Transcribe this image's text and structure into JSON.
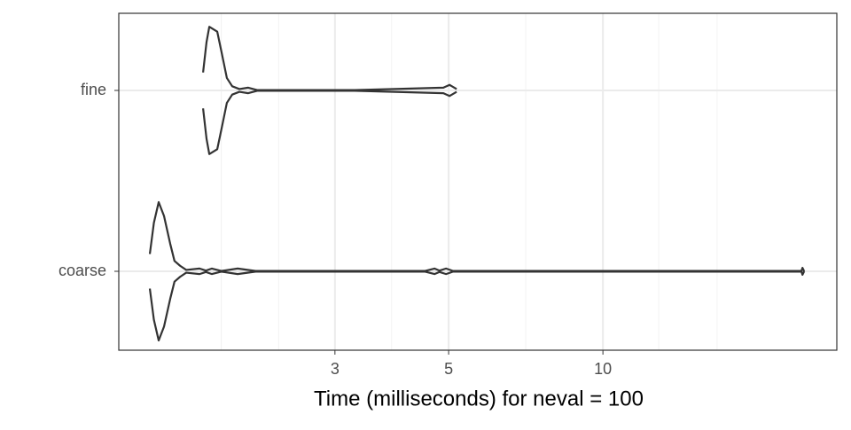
{
  "chart_data": {
    "type": "violin",
    "x_label": "Time (milliseconds) for neval = 100",
    "log_x": true,
    "grid": true,
    "color": "#333333",
    "xlim": [
      1.136,
      28.6
    ],
    "xticks": [
      3,
      5,
      10
    ],
    "minor_xticks": [
      1.8,
      2.33,
      3.87,
      7.07,
      12.85,
      16.7
    ],
    "categories": [
      "fine",
      "coarse"
    ],
    "series": [
      {
        "name": "fine",
        "x": [
          1.659,
          1.685,
          1.706,
          1.768,
          1.803,
          1.846,
          1.891,
          1.953,
          2.032,
          2.115,
          3.279,
          4.883,
          5.021,
          5.183
        ],
        "density": [
          0.26,
          0.7,
          0.92,
          0.85,
          0.55,
          0.18,
          0.06,
          0.02,
          0.04,
          0.005,
          0.005,
          0.04,
          0.08,
          0.02
        ]
      },
      {
        "name": "coarse",
        "x": [
          1.306,
          1.33,
          1.359,
          1.392,
          1.431,
          1.459,
          1.496,
          1.538,
          1.633,
          1.68,
          1.726,
          1.8,
          1.938,
          2.1,
          4.5,
          4.692,
          4.8,
          4.942,
          5.1,
          24.4,
          24.51,
          24.7
        ],
        "density": [
          0.25,
          0.7,
          1.0,
          0.8,
          0.4,
          0.15,
          0.08,
          0.02,
          0.04,
          0.01,
          0.04,
          0.005,
          0.04,
          0.005,
          0.005,
          0.04,
          0.01,
          0.04,
          0.005,
          0.005,
          0.05,
          0.0
        ]
      }
    ]
  }
}
